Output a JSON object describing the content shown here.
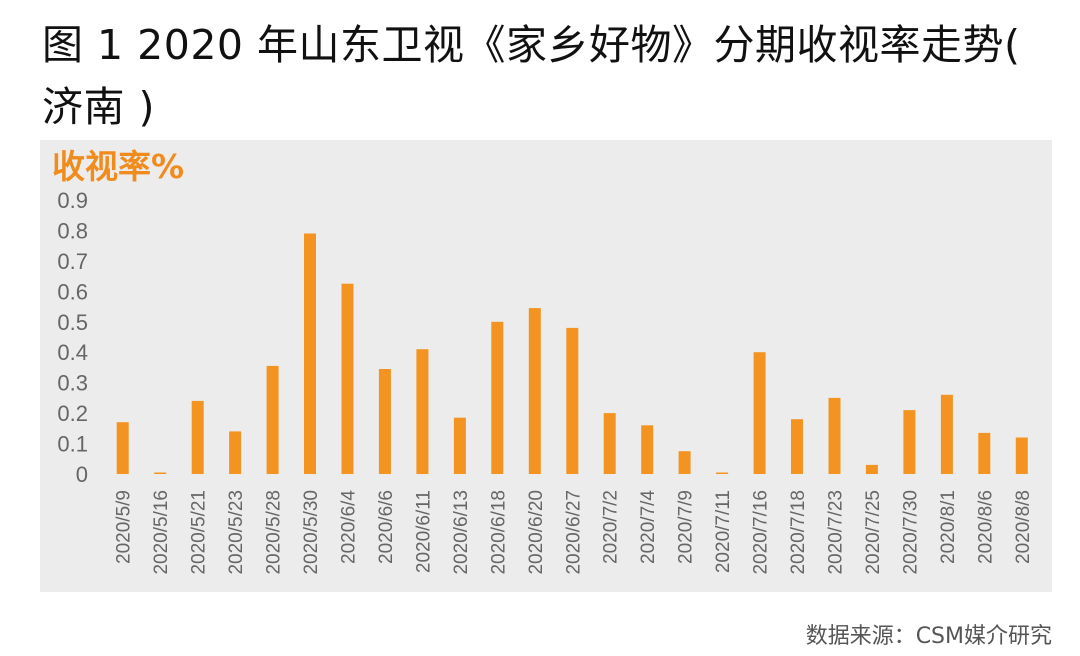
{
  "title": "图 1 2020 年山东卫视《家乡好物》分期收视率走势( 济南 )",
  "source": "数据来源：CSM媒介研究",
  "chart_data": {
    "type": "bar",
    "ylabel": "收视率%",
    "xlabel": "",
    "ylim": [
      0,
      0.9
    ],
    "yticks": [
      "0.9",
      "0.8",
      "0.7",
      "0.6",
      "0.5",
      "0.4",
      "0.3",
      "0.2",
      "0.1",
      "0"
    ],
    "grid": false,
    "bar_color": "#f39321",
    "categories": [
      "2020/5/9",
      "2020/5/16",
      "2020/5/21",
      "2020/5/23",
      "2020/5/28",
      "2020/5/30",
      "2020/6/4",
      "2020/6/6",
      "2020/6/11",
      "2020/6/13",
      "2020/6/18",
      "2020/6/20",
      "2020/6/27",
      "2020/7/2",
      "2020/7/4",
      "2020/7/9",
      "2020/7/11",
      "2020/7/16",
      "2020/7/18",
      "2020/7/23",
      "2020/7/25",
      "2020/7/30",
      "2020/8/1",
      "2020/8/6",
      "2020/8/8"
    ],
    "values": [
      0.17,
      0.005,
      0.24,
      0.14,
      0.355,
      0.79,
      0.625,
      0.345,
      0.41,
      0.185,
      0.5,
      0.545,
      0.48,
      0.2,
      0.16,
      0.075,
      0.005,
      0.4,
      0.18,
      0.25,
      0.03,
      0.21,
      0.26,
      0.135,
      0.12
    ]
  }
}
